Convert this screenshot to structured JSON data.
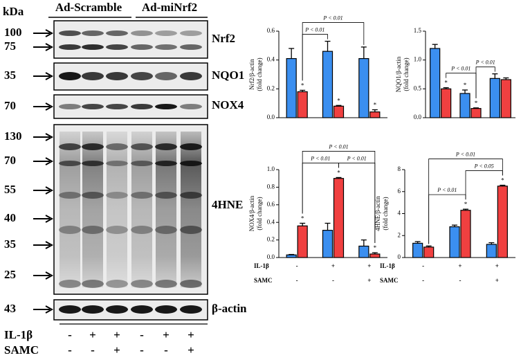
{
  "blot": {
    "unit": "kDa",
    "groups": [
      "Ad-Scramble",
      "Ad-miNrf2"
    ],
    "panels": [
      {
        "label": "Nrf2",
        "markers": [
          100,
          75
        ]
      },
      {
        "label": "NQO1",
        "markers": [
          35
        ]
      },
      {
        "label": "NOX4",
        "markers": [
          70
        ]
      },
      {
        "label": "4HNE",
        "markers": [
          130,
          70,
          55,
          40,
          35,
          25
        ]
      },
      {
        "label": "β-actin",
        "markers": [
          43
        ]
      }
    ],
    "conditions": [
      {
        "label": "IL-1β",
        "values": [
          "-",
          "+",
          "+",
          "-",
          "+",
          "+"
        ]
      },
      {
        "label": "SAMC",
        "values": [
          "-",
          "-",
          "+",
          "-",
          "-",
          "+"
        ]
      }
    ]
  },
  "chart_data": [
    {
      "type": "bar",
      "ylabel": [
        "Nrf2/β-actin",
        "(fold change)"
      ],
      "categories": [
        null,
        null,
        null
      ],
      "ylim": [
        0,
        0.6
      ],
      "yticks": [
        {
          "value": 0,
          "label": "0.0"
        },
        0.2,
        0.4,
        0.6
      ],
      "series": [
        {
          "color": "#3b8ff0",
          "values": [
            0.41,
            0.46,
            0.41
          ],
          "errors": [
            0.07,
            0.07,
            0.08
          ],
          "markers": [
            null,
            null,
            null
          ]
        },
        {
          "color": "#f04040",
          "values": [
            0.18,
            0.08,
            0.04
          ],
          "errors": [
            0.01,
            0.005,
            0.015
          ],
          "markers": [
            "*",
            "*",
            "*"
          ]
        }
      ],
      "brackets": [
        {
          "label": "P < 0.01",
          "from": [
            1,
            0
          ],
          "to": [
            0,
            1
          ]
        },
        {
          "label": "P < 0.01",
          "from": [
            1,
            0
          ],
          "to": [
            0,
            2
          ]
        }
      ]
    },
    {
      "type": "bar",
      "ylabel": [
        "NQO1/β-actin",
        "(fold change)"
      ],
      "categories": [
        null,
        null,
        null
      ],
      "ylim": [
        0,
        1.5
      ],
      "yticks": [
        {
          "value": 0,
          "label": "0.0"
        },
        0.5,
        {
          "value": 1,
          "label": "1.0"
        },
        1.5
      ],
      "series": [
        {
          "color": "#3b8ff0",
          "values": [
            1.2,
            0.42,
            0.68
          ],
          "errors": [
            0.07,
            0.06,
            0.08
          ],
          "markers": [
            null,
            "*",
            null
          ]
        },
        {
          "color": "#f04040",
          "values": [
            0.5,
            0.16,
            0.66
          ],
          "errors": [
            0.02,
            0.01,
            0.03
          ],
          "markers": [
            "*",
            "*",
            null
          ]
        }
      ],
      "brackets": [
        {
          "label": "P < 0.01",
          "from": [
            1,
            0
          ],
          "to": [
            1,
            1
          ]
        },
        {
          "label": "P < 0.01",
          "from": [
            1,
            1
          ],
          "to": [
            0,
            2
          ]
        }
      ]
    },
    {
      "type": "bar",
      "ylabel": [
        "NOX4/β-actin",
        "(fold change)"
      ],
      "categories": [
        null,
        null,
        null
      ],
      "ylim": [
        0,
        1
      ],
      "yticks": [
        {
          "value": 0,
          "label": "0.0"
        },
        0.2,
        0.4,
        0.6,
        0.8,
        {
          "value": 1,
          "label": "1.0"
        }
      ],
      "series": [
        {
          "color": "#3b8ff0",
          "values": [
            0.03,
            0.31,
            0.13
          ],
          "errors": [
            0.005,
            0.08,
            0.07
          ],
          "markers": [
            null,
            null,
            null
          ]
        },
        {
          "color": "#f04040",
          "values": [
            0.36,
            0.9,
            0.04
          ],
          "errors": [
            0.03,
            0.01,
            0.015
          ],
          "markers": [
            "*",
            "*",
            "*"
          ]
        }
      ],
      "brackets": [
        {
          "label": "P < 0.01",
          "from": [
            1,
            0
          ],
          "to": [
            1,
            1
          ]
        },
        {
          "label": "P < 0.01",
          "from": [
            1,
            1
          ],
          "to": [
            1,
            2
          ]
        },
        {
          "label": "P < 0.01",
          "from": [
            1,
            0
          ],
          "to": [
            1,
            2
          ]
        }
      ],
      "conditions": [
        {
          "label": "IL-1β",
          "values": [
            "-",
            "+",
            "+"
          ]
        },
        {
          "label": "SAMC",
          "values": [
            "-",
            "-",
            "+"
          ]
        }
      ]
    },
    {
      "type": "bar",
      "ylabel": [
        "4HNE/β-actin",
        "(fold change)"
      ],
      "categories": [
        null,
        null,
        null
      ],
      "ylim": [
        0,
        8
      ],
      "yticks": [
        0,
        2,
        4,
        6,
        8
      ],
      "series": [
        {
          "color": "#3b8ff0",
          "values": [
            1.3,
            2.8,
            1.2
          ],
          "errors": [
            0.15,
            0.15,
            0.15
          ],
          "markers": [
            null,
            null,
            null
          ]
        },
        {
          "color": "#f04040",
          "values": [
            0.95,
            4.3,
            6.5
          ],
          "errors": [
            0.1,
            0.1,
            0.08
          ],
          "markers": [
            null,
            "*",
            "*"
          ]
        }
      ],
      "brackets": [
        {
          "label": "P < 0.01",
          "from": [
            1,
            0
          ],
          "to": [
            1,
            1
          ]
        },
        {
          "label": "P < 0.05",
          "from": [
            1,
            1
          ],
          "to": [
            1,
            2
          ]
        },
        {
          "label": "P < 0.01",
          "from": [
            1,
            0
          ],
          "to": [
            1,
            2
          ]
        }
      ],
      "conditions": [
        {
          "label": "IL-1β",
          "values": [
            "-",
            "+",
            "+"
          ]
        },
        {
          "label": "SAMC",
          "values": [
            "-",
            "-",
            "+"
          ]
        }
      ]
    }
  ]
}
